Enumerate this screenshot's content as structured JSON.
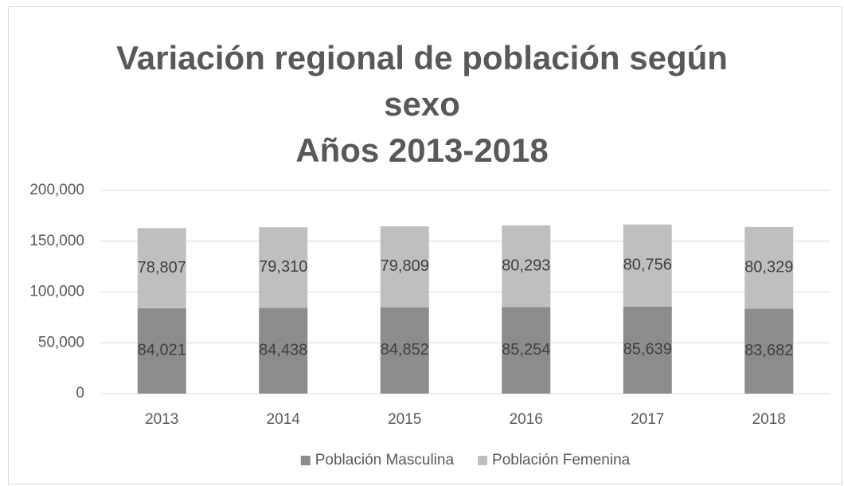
{
  "chart_data": {
    "type": "stacked_bar",
    "title": "Variación regional de población según sexo",
    "subtitle": "Años 2013-2018",
    "categories": [
      "2013",
      "2014",
      "2015",
      "2016",
      "2017",
      "2018"
    ],
    "series": [
      {
        "name": "Población Masculina",
        "color": "#8c8c8c",
        "values": [
          84021,
          84438,
          84852,
          85254,
          85639,
          83682
        ],
        "value_labels": [
          "84,021",
          "84,438",
          "84,852",
          "85,254",
          "85,639",
          "83,682"
        ]
      },
      {
        "name": "Población Femenina",
        "color": "#bfbfbf",
        "values": [
          78807,
          79310,
          79809,
          80293,
          80756,
          80329
        ],
        "value_labels": [
          "78,807",
          "79,310",
          "79,809",
          "80,293",
          "80,756",
          "80,329"
        ]
      }
    ],
    "ylim": [
      0,
      200000
    ],
    "yticks": [
      0,
      {
        "value": 50000,
        "label": "50,000"
      },
      {
        "value": 100000,
        "label": "100,000"
      },
      {
        "value": 150000,
        "label": "150,000"
      },
      {
        "value": 200000,
        "label": "200,000"
      }
    ],
    "grid": true,
    "legend": "bottom"
  }
}
